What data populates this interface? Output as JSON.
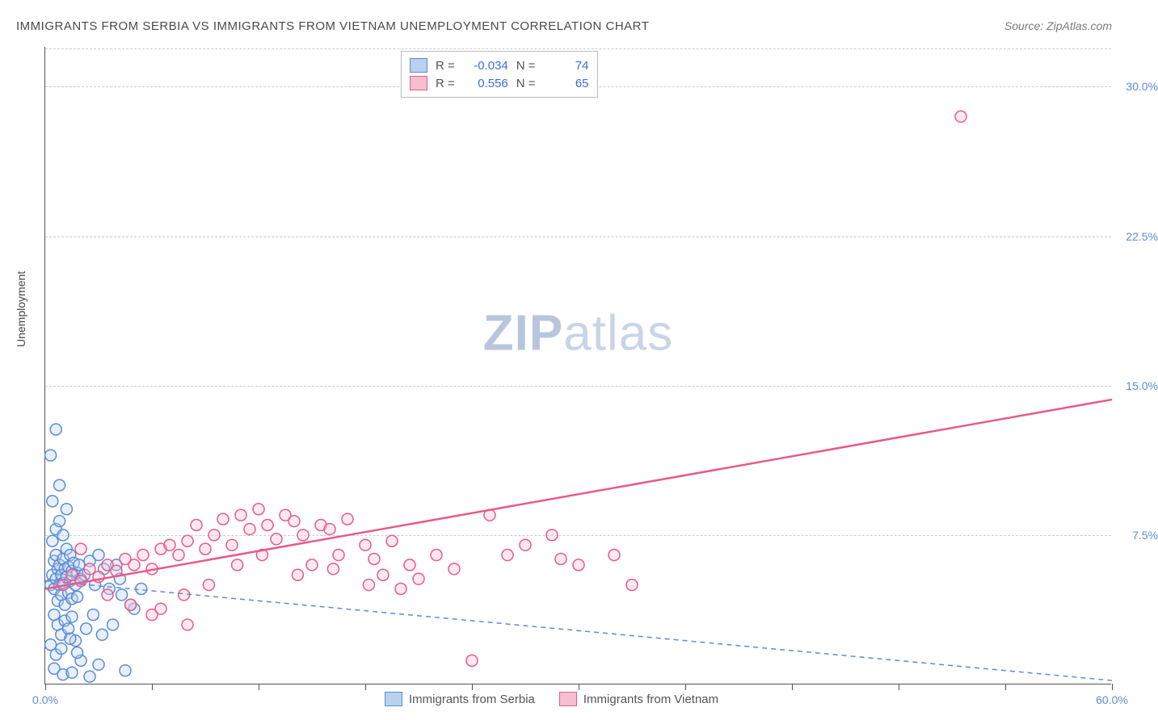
{
  "title": "IMMIGRANTS FROM SERBIA VS IMMIGRANTS FROM VIETNAM UNEMPLOYMENT CORRELATION CHART",
  "source": "Source: ZipAtlas.com",
  "ylabel": "Unemployment",
  "watermark_zip": "ZIP",
  "watermark_atlas": "atlas",
  "chart": {
    "type": "scatter",
    "background_color": "#ffffff",
    "grid_color": "#cccccc",
    "grid_dash": "4,3",
    "axis_color": "#555555",
    "xlim": [
      0,
      60
    ],
    "ylim": [
      0,
      32
    ],
    "xtick_positions": [
      0,
      6,
      12,
      18,
      24,
      30,
      36,
      42,
      48,
      54,
      60
    ],
    "xtick_labels": {
      "0": "0.0%",
      "60": "60.0%"
    },
    "ytick_positions": [
      7.5,
      15.0,
      22.5,
      30.0
    ],
    "ytick_labels": [
      "7.5%",
      "15.0%",
      "22.5%",
      "30.0%"
    ],
    "circle_radius": 7,
    "circle_stroke_width": 1.5,
    "circle_fill_opacity": 0.35,
    "series": [
      {
        "name": "Immigrants from Serbia",
        "color": "#5b8dd6",
        "fill": "#b9d0ee",
        "R": "-0.034",
        "N": "74",
        "trend": {
          "x1": 0,
          "y1": 5.2,
          "x2": 60,
          "y2": 0.2,
          "width": 1.5,
          "dash": "6,5"
        },
        "points": [
          [
            0.3,
            5.0
          ],
          [
            0.4,
            5.5
          ],
          [
            0.5,
            6.2
          ],
          [
            0.5,
            4.8
          ],
          [
            0.6,
            5.3
          ],
          [
            0.6,
            6.5
          ],
          [
            0.7,
            5.8
          ],
          [
            0.7,
            4.2
          ],
          [
            0.8,
            5.0
          ],
          [
            0.8,
            6.0
          ],
          [
            0.9,
            5.5
          ],
          [
            0.9,
            4.5
          ],
          [
            1.0,
            6.3
          ],
          [
            1.0,
            5.1
          ],
          [
            1.1,
            5.8
          ],
          [
            1.1,
            4.0
          ],
          [
            1.2,
            6.8
          ],
          [
            1.2,
            5.4
          ],
          [
            1.3,
            4.6
          ],
          [
            1.3,
            5.9
          ],
          [
            1.4,
            5.2
          ],
          [
            1.4,
            6.5
          ],
          [
            1.5,
            4.3
          ],
          [
            1.5,
            5.7
          ],
          [
            1.6,
            6.1
          ],
          [
            1.7,
            5.0
          ],
          [
            1.8,
            5.6
          ],
          [
            1.8,
            4.4
          ],
          [
            1.9,
            6.0
          ],
          [
            2.0,
            5.3
          ],
          [
            0.5,
            3.5
          ],
          [
            0.7,
            3.0
          ],
          [
            0.9,
            2.5
          ],
          [
            1.1,
            3.2
          ],
          [
            1.3,
            2.8
          ],
          [
            1.5,
            3.4
          ],
          [
            1.7,
            2.2
          ],
          [
            0.4,
            7.2
          ],
          [
            0.6,
            7.8
          ],
          [
            0.8,
            8.2
          ],
          [
            1.0,
            7.5
          ],
          [
            0.3,
            11.5
          ],
          [
            0.6,
            12.8
          ],
          [
            0.4,
            9.2
          ],
          [
            0.8,
            10.0
          ],
          [
            1.2,
            8.8
          ],
          [
            2.2,
            5.5
          ],
          [
            2.5,
            6.2
          ],
          [
            2.8,
            5.0
          ],
          [
            3.0,
            6.5
          ],
          [
            3.3,
            5.8
          ],
          [
            3.6,
            4.8
          ],
          [
            4.0,
            6.0
          ],
          [
            4.2,
            5.3
          ],
          [
            0.5,
            0.8
          ],
          [
            1.0,
            0.5
          ],
          [
            1.5,
            0.6
          ],
          [
            2.0,
            1.2
          ],
          [
            2.5,
            0.4
          ],
          [
            3.0,
            1.0
          ],
          [
            4.5,
            0.7
          ],
          [
            5.0,
            3.8
          ],
          [
            0.3,
            2.0
          ],
          [
            0.6,
            1.5
          ],
          [
            0.9,
            1.8
          ],
          [
            1.4,
            2.3
          ],
          [
            1.8,
            1.6
          ],
          [
            2.3,
            2.8
          ],
          [
            2.7,
            3.5
          ],
          [
            3.2,
            2.5
          ],
          [
            3.8,
            3.0
          ],
          [
            4.3,
            4.5
          ],
          [
            4.8,
            4.0
          ],
          [
            5.4,
            4.8
          ]
        ]
      },
      {
        "name": "Immigrants from Vietnam",
        "color": "#e85a8b",
        "fill": "#f5bfd0",
        "R": "0.556",
        "N": "65",
        "trend": {
          "x1": 0,
          "y1": 4.8,
          "x2": 60,
          "y2": 14.3,
          "width": 2.5,
          "dash": "none"
        },
        "points": [
          [
            1.0,
            5.0
          ],
          [
            1.5,
            5.5
          ],
          [
            2.0,
            5.2
          ],
          [
            2.5,
            5.8
          ],
          [
            3.0,
            5.4
          ],
          [
            3.5,
            6.0
          ],
          [
            4.0,
            5.7
          ],
          [
            4.5,
            6.3
          ],
          [
            5.0,
            6.0
          ],
          [
            5.5,
            6.5
          ],
          [
            6.0,
            5.8
          ],
          [
            6.5,
            6.8
          ],
          [
            7.0,
            7.0
          ],
          [
            7.5,
            6.5
          ],
          [
            8.0,
            7.2
          ],
          [
            8.5,
            8.0
          ],
          [
            9.0,
            6.8
          ],
          [
            9.5,
            7.5
          ],
          [
            10.0,
            8.3
          ],
          [
            10.5,
            7.0
          ],
          [
            11.0,
            8.5
          ],
          [
            11.5,
            7.8
          ],
          [
            12.0,
            8.8
          ],
          [
            12.5,
            8.0
          ],
          [
            13.0,
            7.3
          ],
          [
            13.5,
            8.5
          ],
          [
            14.0,
            8.2
          ],
          [
            14.5,
            7.5
          ],
          [
            15.0,
            6.0
          ],
          [
            15.5,
            8.0
          ],
          [
            16.0,
            7.8
          ],
          [
            16.5,
            6.5
          ],
          [
            17.0,
            8.3
          ],
          [
            18.0,
            7.0
          ],
          [
            18.5,
            6.3
          ],
          [
            19.0,
            5.5
          ],
          [
            19.5,
            7.2
          ],
          [
            20.5,
            6.0
          ],
          [
            21.0,
            5.3
          ],
          [
            22.0,
            6.5
          ],
          [
            23.0,
            5.8
          ],
          [
            25.0,
            8.5
          ],
          [
            26.0,
            6.5
          ],
          [
            27.0,
            7.0
          ],
          [
            28.5,
            7.5
          ],
          [
            29.0,
            6.3
          ],
          [
            30.0,
            6.0
          ],
          [
            32.0,
            6.5
          ],
          [
            33.0,
            5.0
          ],
          [
            6.0,
            3.5
          ],
          [
            8.0,
            3.0
          ],
          [
            24.0,
            1.2
          ],
          [
            2.0,
            6.8
          ],
          [
            3.5,
            4.5
          ],
          [
            4.8,
            4.0
          ],
          [
            6.5,
            3.8
          ],
          [
            7.8,
            4.5
          ],
          [
            9.2,
            5.0
          ],
          [
            10.8,
            6.0
          ],
          [
            12.2,
            6.5
          ],
          [
            14.2,
            5.5
          ],
          [
            16.2,
            5.8
          ],
          [
            18.2,
            5.0
          ],
          [
            20.0,
            4.8
          ],
          [
            51.5,
            28.5
          ]
        ]
      }
    ],
    "legend_top_labels": {
      "R": "R =",
      "N": "N ="
    },
    "legend_bottom": [
      {
        "label": "Immigrants from Serbia",
        "color": "#5b8dd6",
        "fill": "#b9d0ee"
      },
      {
        "label": "Immigrants from Vietnam",
        "color": "#e85a8b",
        "fill": "#f5bfd0"
      }
    ]
  }
}
